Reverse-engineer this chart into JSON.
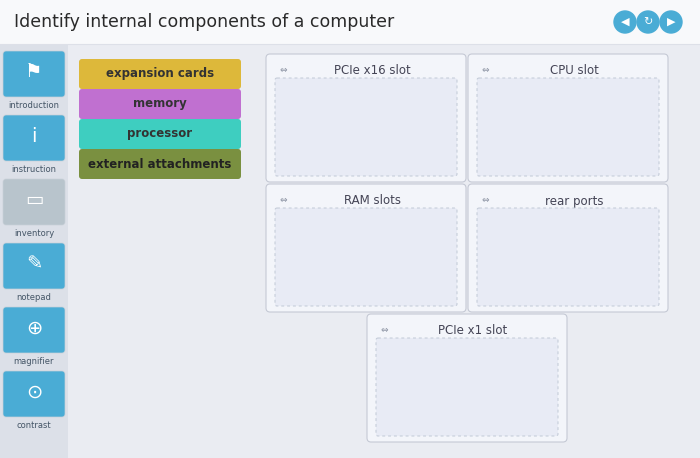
{
  "title": "Identify internal components of a computer",
  "bg_color": "#eaecf2",
  "header_bg": "#f8f9fc",
  "header_text_color": "#2a2a2a",
  "title_fontsize": 12.5,
  "category_buttons": [
    {
      "label": "expansion cards",
      "color": "#ddb83a",
      "text_color": "#333333"
    },
    {
      "label": "memory",
      "color": "#c070d0",
      "text_color": "#333333"
    },
    {
      "label": "processor",
      "color": "#3ecec0",
      "text_color": "#333333"
    },
    {
      "label": "external attachments",
      "color": "#7a9040",
      "text_color": "#222222"
    }
  ],
  "drop_zones": [
    {
      "label": "PCIe x16 slot",
      "row": 0,
      "col": 0
    },
    {
      "label": "CPU slot",
      "row": 0,
      "col": 1
    },
    {
      "label": "RAM slots",
      "row": 1,
      "col": 0
    },
    {
      "label": "rear ports",
      "row": 1,
      "col": 1
    },
    {
      "label": "PCIe x1 slot",
      "row": 2,
      "col": "center"
    }
  ],
  "icon_colors_active": "#4aacd5",
  "icon_color_inactive": "#b8c4cc",
  "sidebar_labels": [
    "introduction",
    "instruction",
    "inventory",
    "notepad",
    "magnifier",
    "contrast"
  ],
  "sidebar_active": [
    true,
    true,
    false,
    true,
    true,
    true
  ]
}
